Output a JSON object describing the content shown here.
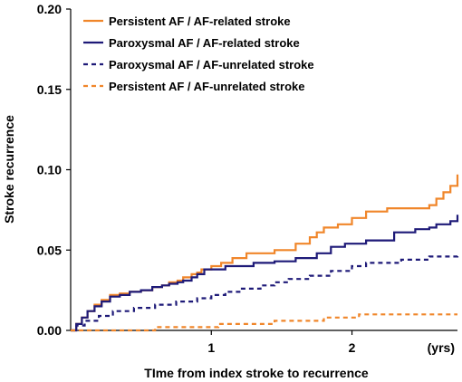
{
  "chart_data": {
    "type": "line",
    "subtype": "step",
    "xlabel": "TIme from index stroke to recurrence",
    "x_unit_label": "(yrs)",
    "ylabel": "Stroke recurrence",
    "xlim": [
      0,
      2.75
    ],
    "ylim": [
      0,
      0.2
    ],
    "x_ticks": [
      {
        "value": 1,
        "label": "1"
      },
      {
        "value": 2,
        "label": "2"
      }
    ],
    "y_ticks": [
      {
        "value": 0.0,
        "label": "0.00"
      },
      {
        "value": 0.05,
        "label": "0.05"
      },
      {
        "value": 0.1,
        "label": "0.10"
      },
      {
        "value": 0.15,
        "label": "0.15"
      },
      {
        "value": 0.2,
        "label": "0.20"
      }
    ],
    "legend_position": "top-left",
    "grid": false,
    "series": [
      {
        "name": "Persistent AF / AF-related stroke",
        "color": "#F0862A",
        "dash": "solid",
        "points": [
          [
            0,
            0
          ],
          [
            0.04,
            0.004
          ],
          [
            0.08,
            0.008
          ],
          [
            0.12,
            0.012
          ],
          [
            0.17,
            0.016
          ],
          [
            0.22,
            0.019
          ],
          [
            0.28,
            0.022
          ],
          [
            0.35,
            0.023
          ],
          [
            0.42,
            0.024
          ],
          [
            0.5,
            0.025
          ],
          [
            0.58,
            0.027
          ],
          [
            0.65,
            0.028
          ],
          [
            0.7,
            0.03
          ],
          [
            0.76,
            0.031
          ],
          [
            0.8,
            0.033
          ],
          [
            0.86,
            0.035
          ],
          [
            0.9,
            0.036
          ],
          [
            0.93,
            0.038
          ],
          [
            1.0,
            0.04
          ],
          [
            1.07,
            0.042
          ],
          [
            1.15,
            0.045
          ],
          [
            1.25,
            0.048
          ],
          [
            1.45,
            0.05
          ],
          [
            1.6,
            0.054
          ],
          [
            1.7,
            0.058
          ],
          [
            1.75,
            0.061
          ],
          [
            1.8,
            0.064
          ],
          [
            1.9,
            0.066
          ],
          [
            2.0,
            0.07
          ],
          [
            2.1,
            0.074
          ],
          [
            2.25,
            0.076
          ],
          [
            2.55,
            0.078
          ],
          [
            2.6,
            0.082
          ],
          [
            2.65,
            0.086
          ],
          [
            2.7,
            0.09
          ],
          [
            2.75,
            0.097
          ]
        ]
      },
      {
        "name": "Paroxysmal AF / AF-related stroke",
        "color": "#1E1A78",
        "dash": "solid",
        "points": [
          [
            0,
            0
          ],
          [
            0.04,
            0.004
          ],
          [
            0.08,
            0.008
          ],
          [
            0.12,
            0.012
          ],
          [
            0.17,
            0.015
          ],
          [
            0.22,
            0.018
          ],
          [
            0.28,
            0.021
          ],
          [
            0.35,
            0.022
          ],
          [
            0.42,
            0.024
          ],
          [
            0.5,
            0.025
          ],
          [
            0.58,
            0.027
          ],
          [
            0.65,
            0.028
          ],
          [
            0.7,
            0.029
          ],
          [
            0.76,
            0.03
          ],
          [
            0.8,
            0.031
          ],
          [
            0.86,
            0.033
          ],
          [
            0.9,
            0.035
          ],
          [
            0.95,
            0.038
          ],
          [
            1.1,
            0.04
          ],
          [
            1.3,
            0.042
          ],
          [
            1.45,
            0.043
          ],
          [
            1.6,
            0.045
          ],
          [
            1.75,
            0.048
          ],
          [
            1.85,
            0.052
          ],
          [
            1.95,
            0.054
          ],
          [
            2.1,
            0.056
          ],
          [
            2.3,
            0.061
          ],
          [
            2.45,
            0.063
          ],
          [
            2.55,
            0.064
          ],
          [
            2.6,
            0.066
          ],
          [
            2.7,
            0.068
          ],
          [
            2.75,
            0.072
          ]
        ]
      },
      {
        "name": "Paroxysmal AF / AF-unrelated stroke",
        "color": "#1E1A78",
        "dash": "dashed",
        "points": [
          [
            0,
            0
          ],
          [
            0.04,
            0.003
          ],
          [
            0.1,
            0.006
          ],
          [
            0.2,
            0.009
          ],
          [
            0.3,
            0.012
          ],
          [
            0.45,
            0.014
          ],
          [
            0.6,
            0.016
          ],
          [
            0.75,
            0.018
          ],
          [
            0.9,
            0.02
          ],
          [
            1.0,
            0.022
          ],
          [
            1.1,
            0.024
          ],
          [
            1.2,
            0.026
          ],
          [
            1.35,
            0.028
          ],
          [
            1.45,
            0.03
          ],
          [
            1.55,
            0.032
          ],
          [
            1.7,
            0.034
          ],
          [
            1.85,
            0.037
          ],
          [
            2.0,
            0.04
          ],
          [
            2.1,
            0.042
          ],
          [
            2.35,
            0.044
          ],
          [
            2.55,
            0.046
          ],
          [
            2.75,
            0.048
          ]
        ]
      },
      {
        "name": "Persistent AF / AF-unrelated stroke",
        "color": "#F0862A",
        "dash": "dashed",
        "points": [
          [
            0,
            0
          ],
          [
            0.4,
            0.0
          ],
          [
            0.6,
            0.002
          ],
          [
            1.0,
            0.002
          ],
          [
            1.05,
            0.004
          ],
          [
            1.4,
            0.004
          ],
          [
            1.45,
            0.006
          ],
          [
            1.75,
            0.006
          ],
          [
            1.8,
            0.008
          ],
          [
            2.0,
            0.008
          ],
          [
            2.05,
            0.01
          ],
          [
            2.75,
            0.01
          ]
        ]
      }
    ]
  }
}
